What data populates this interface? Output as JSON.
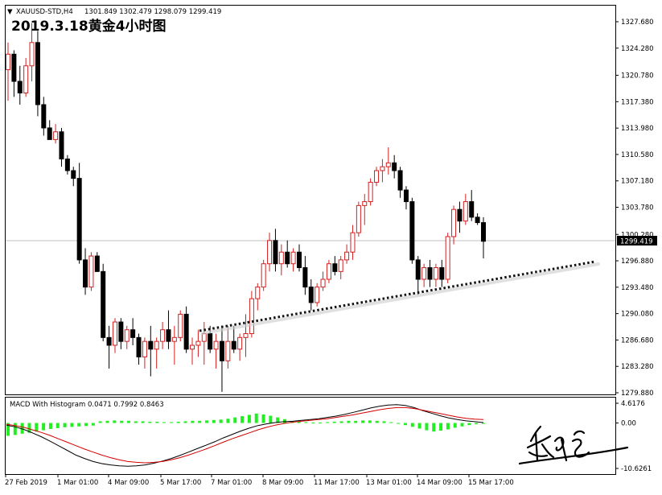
{
  "header": {
    "symbol": "XAUUSD-STD,H4",
    "ohlc": "1301.849 1302.479 1298.079 1299.419",
    "overlay_title": "2019.3.18黄金4小时图"
  },
  "colors": {
    "bull": "#d42020",
    "bear": "#000000",
    "macd_line": "#000000",
    "signal_line": "#d40000",
    "hist": "#22ee22",
    "trendline": "#111111",
    "price_label_bg": "#000000"
  },
  "chart_data": [
    {
      "type": "candlestick",
      "name": "price",
      "y_ticks": [
        "1327.680",
        "1324.280",
        "1320.780",
        "1317.380",
        "1313.980",
        "1310.580",
        "1307.180",
        "1303.780",
        "1300.280",
        "1296.880",
        "1293.480",
        "1290.080",
        "1286.680",
        "1283.280",
        "1279.880"
      ],
      "ylim": [
        1279.88,
        1327.68
      ],
      "current_price": "1299.419",
      "x_labels": [
        "27 Feb 2019",
        "1 Mar 01:00",
        "4 Mar 09:00",
        "5 Mar 17:00",
        "7 Mar 01:00",
        "8 Mar 09:00",
        "11 Mar 17:00",
        "13 Mar 01:00",
        "14 Mar 09:00",
        "15 Mar 17:00"
      ],
      "candles": [
        [
          1321.5,
          1325.0,
          1317.5,
          1323.5
        ],
        [
          1323.5,
          1324.0,
          1318.0,
          1320.0
        ],
        [
          1320.0,
          1322.0,
          1317.0,
          1318.5
        ],
        [
          1318.5,
          1323.0,
          1318.0,
          1322.0
        ],
        [
          1322.0,
          1327.5,
          1320.0,
          1325.0
        ],
        [
          1325.0,
          1326.5,
          1315.5,
          1317.0
        ],
        [
          1317.0,
          1318.0,
          1313.0,
          1314.0
        ],
        [
          1314.0,
          1315.0,
          1312.5,
          1312.5
        ],
        [
          1312.5,
          1314.5,
          1312.0,
          1313.5
        ],
        [
          1313.5,
          1314.0,
          1309.0,
          1310.0
        ],
        [
          1310.0,
          1310.5,
          1308.0,
          1308.5
        ],
        [
          1308.5,
          1309.0,
          1306.5,
          1307.5
        ],
        [
          1307.5,
          1309.5,
          1296.5,
          1297.0
        ],
        [
          1297.0,
          1298.5,
          1292.5,
          1293.5
        ],
        [
          1293.5,
          1298.0,
          1293.0,
          1297.5
        ],
        [
          1297.5,
          1298.0,
          1295.5,
          1295.5
        ],
        [
          1295.5,
          1296.5,
          1286.5,
          1287.0
        ],
        [
          1287.0,
          1288.5,
          1283.0,
          1286.0
        ],
        [
          1286.0,
          1289.5,
          1285.0,
          1289.0
        ],
        [
          1289.0,
          1289.5,
          1285.5,
          1286.5
        ],
        [
          1286.5,
          1288.5,
          1285.5,
          1288.0
        ],
        [
          1288.0,
          1289.5,
          1286.0,
          1287.0
        ],
        [
          1287.0,
          1287.5,
          1283.5,
          1284.5
        ],
        [
          1284.5,
          1287.0,
          1283.0,
          1286.5
        ],
        [
          1286.5,
          1288.5,
          1282.0,
          1285.5
        ],
        [
          1285.5,
          1287.0,
          1283.0,
          1286.5
        ],
        [
          1286.5,
          1289.0,
          1285.5,
          1288.0
        ],
        [
          1288.0,
          1290.5,
          1285.5,
          1286.5
        ],
        [
          1286.5,
          1288.5,
          1283.5,
          1287.0
        ],
        [
          1287.0,
          1290.5,
          1286.5,
          1290.0
        ],
        [
          1290.0,
          1291.0,
          1285.0,
          1285.5
        ],
        [
          1285.5,
          1287.0,
          1283.5,
          1286.0
        ],
        [
          1286.0,
          1288.0,
          1284.5,
          1286.5
        ],
        [
          1286.5,
          1289.0,
          1283.5,
          1287.5
        ],
        [
          1287.5,
          1288.5,
          1285.0,
          1285.5
        ],
        [
          1285.5,
          1287.5,
          1283.0,
          1286.5
        ],
        [
          1286.5,
          1288.5,
          1280.0,
          1284.0
        ],
        [
          1284.0,
          1288.5,
          1283.0,
          1286.5
        ],
        [
          1286.5,
          1288.5,
          1285.0,
          1285.5
        ],
        [
          1285.5,
          1287.5,
          1284.0,
          1287.0
        ],
        [
          1287.0,
          1290.0,
          1284.5,
          1287.5
        ],
        [
          1287.5,
          1293.0,
          1287.0,
          1292.0
        ],
        [
          1292.0,
          1294.0,
          1290.5,
          1293.5
        ],
        [
          1293.5,
          1297.0,
          1293.0,
          1296.5
        ],
        [
          1296.5,
          1300.5,
          1295.5,
          1299.5
        ],
        [
          1299.5,
          1301.0,
          1295.5,
          1296.5
        ],
        [
          1296.5,
          1299.0,
          1295.0,
          1298.0
        ],
        [
          1298.0,
          1299.5,
          1296.0,
          1296.5
        ],
        [
          1296.5,
          1298.5,
          1295.5,
          1298.0
        ],
        [
          1298.0,
          1299.0,
          1295.5,
          1296.0
        ],
        [
          1296.0,
          1297.5,
          1292.5,
          1293.5
        ],
        [
          1293.5,
          1294.5,
          1290.5,
          1291.5
        ],
        [
          1291.5,
          1294.0,
          1291.0,
          1293.5
        ],
        [
          1293.5,
          1295.5,
          1293.0,
          1294.5
        ],
        [
          1294.5,
          1297.0,
          1294.0,
          1296.5
        ],
        [
          1296.5,
          1297.5,
          1295.0,
          1295.5
        ],
        [
          1295.5,
          1297.5,
          1294.5,
          1297.0
        ],
        [
          1297.0,
          1299.0,
          1296.5,
          1298.0
        ],
        [
          1298.0,
          1301.5,
          1297.0,
          1300.5
        ],
        [
          1300.5,
          1304.5,
          1300.0,
          1304.0
        ],
        [
          1304.0,
          1305.5,
          1301.5,
          1304.5
        ],
        [
          1304.5,
          1307.5,
          1304.0,
          1307.0
        ],
        [
          1307.0,
          1309.0,
          1306.5,
          1308.5
        ],
        [
          1308.5,
          1310.0,
          1307.0,
          1309.0
        ],
        [
          1309.0,
          1311.5,
          1308.0,
          1309.5
        ],
        [
          1309.5,
          1310.5,
          1307.5,
          1308.5
        ],
        [
          1308.5,
          1309.0,
          1305.0,
          1306.0
        ],
        [
          1306.0,
          1306.5,
          1303.5,
          1304.5
        ],
        [
          1304.5,
          1305.0,
          1296.5,
          1297.0
        ],
        [
          1297.0,
          1297.5,
          1292.5,
          1294.5
        ],
        [
          1294.5,
          1296.5,
          1293.5,
          1296.0
        ],
        [
          1296.0,
          1297.0,
          1293.5,
          1294.5
        ],
        [
          1294.5,
          1296.5,
          1293.5,
          1296.0
        ],
        [
          1296.0,
          1297.0,
          1293.5,
          1294.5
        ],
        [
          1294.5,
          1300.5,
          1294.0,
          1300.0
        ],
        [
          1300.0,
          1304.0,
          1299.0,
          1303.5
        ],
        [
          1303.5,
          1304.5,
          1300.5,
          1302.0
        ],
        [
          1302.0,
          1305.5,
          1301.5,
          1304.5
        ],
        [
          1304.5,
          1306.0,
          1302.0,
          1302.5
        ],
        [
          1302.5,
          1303.0,
          1301.5,
          1301.8
        ],
        [
          1301.8,
          1302.5,
          1297.2,
          1299.4
        ]
      ]
    },
    {
      "type": "line",
      "name": "MACD With Histogram",
      "header": "MACD With Histogram 0.0471 0.7992 0.8463",
      "y_ticks": [
        "4.6176",
        "0.00",
        "-10.6261"
      ],
      "ylim": [
        -10.6261,
        4.6176
      ],
      "histogram": [
        -3.0,
        -2.8,
        -2.5,
        -2.3,
        -2.0,
        -1.7,
        -1.4,
        -1.2,
        -1.0,
        -0.9,
        -0.8,
        -0.7,
        -0.6,
        0.4,
        0.5,
        0.6,
        0.5,
        0.5,
        0.4,
        0.4,
        0.3,
        0.3,
        0.2,
        0.2,
        0.3,
        0.4,
        0.5,
        0.5,
        0.6,
        0.7,
        0.8,
        1.0,
        1.3,
        1.6,
        1.9,
        2.2,
        2.0,
        1.7,
        1.3,
        0.9,
        0.5,
        0.3,
        0.2,
        0.1,
        0.1,
        0.2,
        0.3,
        0.4,
        0.5,
        0.5,
        0.6,
        0.6,
        0.5,
        0.4,
        0.2,
        -0.2,
        -0.5,
        -0.9,
        -1.3,
        -1.7,
        -2.0,
        -1.8,
        -1.5,
        -1.1,
        -0.8,
        -0.5,
        -0.3,
        -0.1
      ],
      "series": [
        {
          "values": [
            -0.5,
            -0.9,
            -1.5,
            -2.3,
            -3.2,
            -4.2,
            -5.3,
            -6.4,
            -7.5,
            -8.3,
            -9.0,
            -9.5,
            -9.8,
            -10.0,
            -10.1,
            -10.0,
            -9.8,
            -9.4,
            -8.9,
            -8.3,
            -7.6,
            -6.8,
            -6.0,
            -5.2,
            -4.4,
            -3.5,
            -2.7,
            -1.9,
            -1.2,
            -0.6,
            -0.2,
            0.1,
            0.3,
            0.4,
            0.6,
            0.8,
            1.0,
            1.3,
            1.6,
            2.0,
            2.5,
            3.0,
            3.5,
            3.9,
            4.2,
            4.3,
            4.1,
            3.6,
            2.9,
            2.3,
            1.7,
            1.2,
            0.8,
            0.5,
            0.3,
            0.1
          ]
        },
        {
          "values": [
            -0.3,
            -0.6,
            -1.0,
            -1.6,
            -2.2,
            -2.9,
            -3.7,
            -4.5,
            -5.3,
            -6.1,
            -6.8,
            -7.5,
            -8.1,
            -8.6,
            -9.0,
            -9.2,
            -9.3,
            -9.2,
            -9.0,
            -8.6,
            -8.1,
            -7.5,
            -6.8,
            -6.1,
            -5.3,
            -4.5,
            -3.7,
            -3.0,
            -2.3,
            -1.6,
            -1.0,
            -0.5,
            -0.1,
            0.2,
            0.4,
            0.6,
            0.8,
            1.0,
            1.3,
            1.6,
            1.9,
            2.3,
            2.7,
            3.1,
            3.4,
            3.6,
            3.6,
            3.4,
            3.0,
            2.6,
            2.2,
            1.8,
            1.4,
            1.1,
            0.9,
            0.8
          ]
        }
      ]
    }
  ]
}
